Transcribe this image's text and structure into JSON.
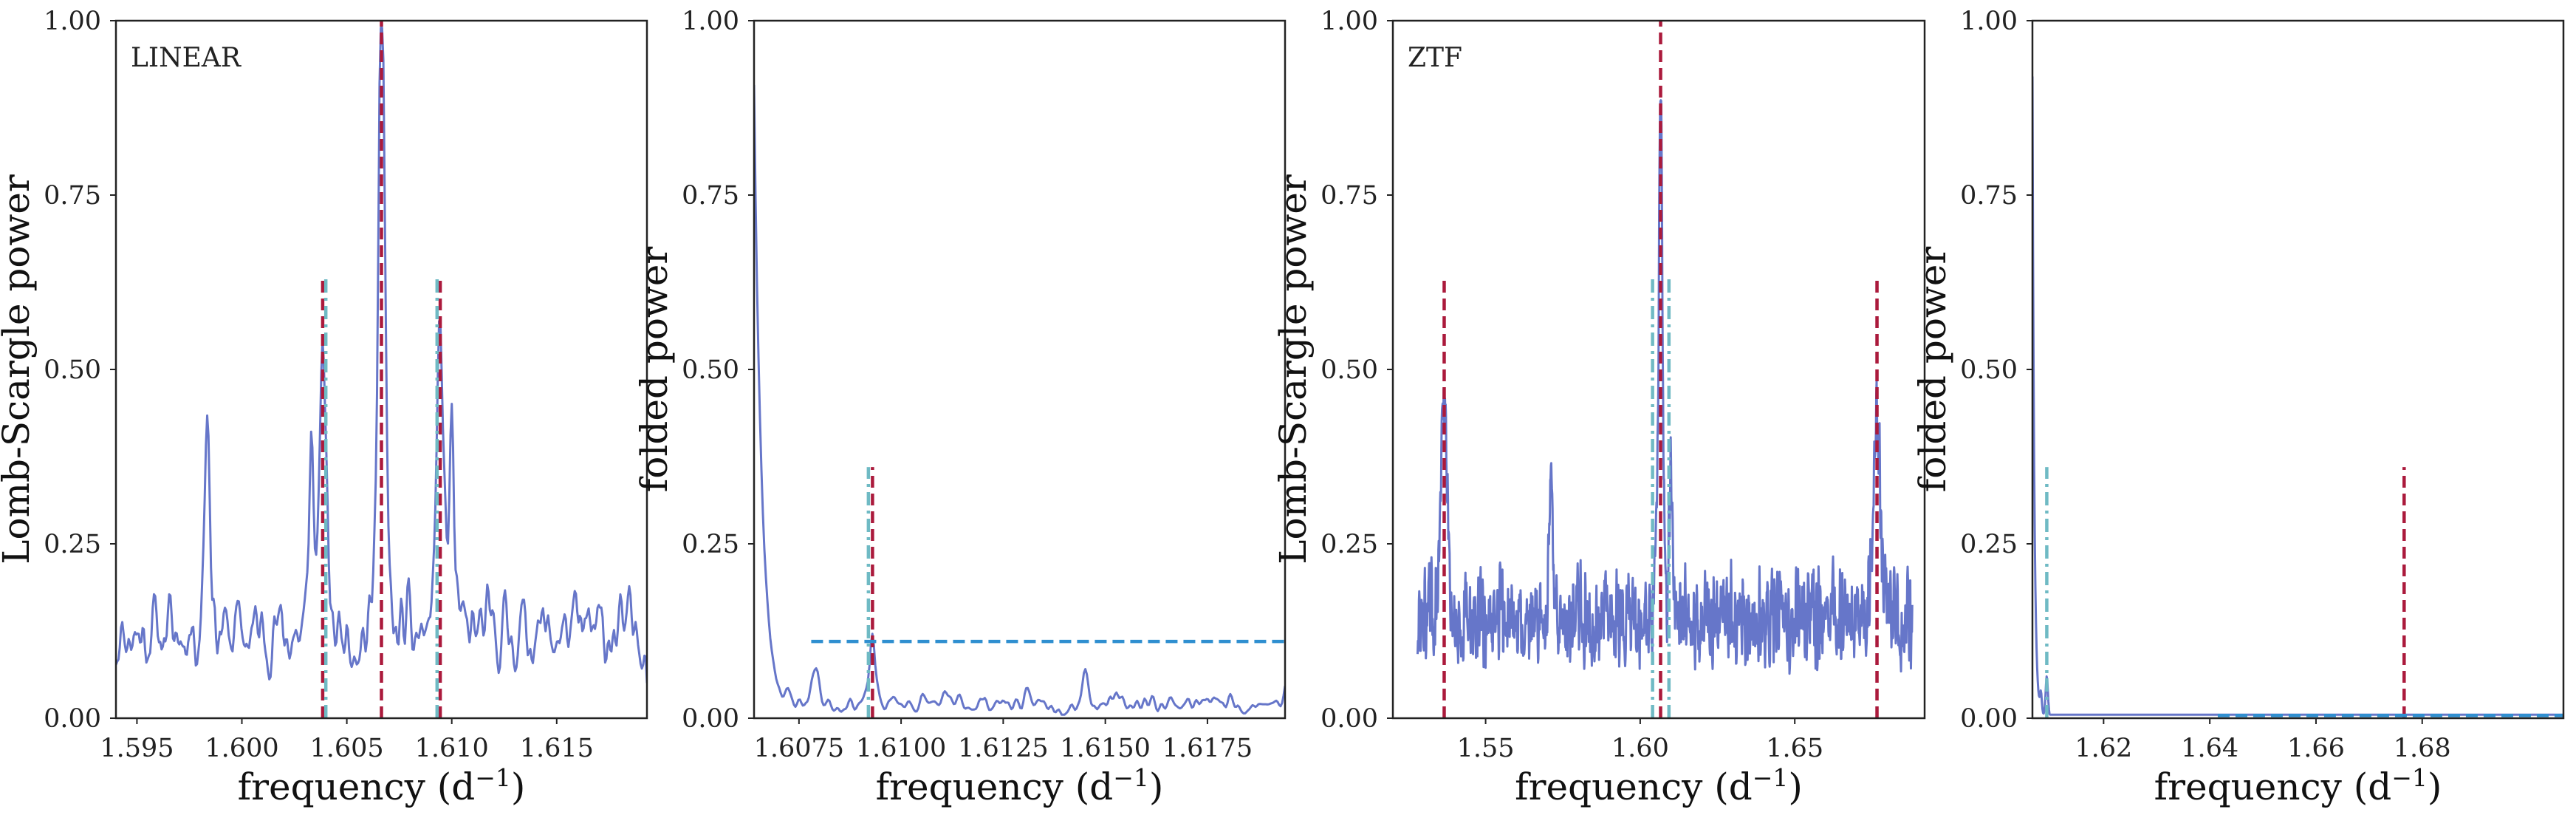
{
  "colors": {
    "series": "#6676c9",
    "red": "#ab1a3c",
    "cyan": "#6fbac4",
    "blue": "#2f8fd0"
  },
  "chart_data": [
    {
      "type": "line",
      "panel": "LINEAR periodogram",
      "annotation": "LINEAR",
      "xlabel": "frequency (d",
      "xlabel_sup": "−1",
      "xlabel_close": ")",
      "ylabel": "Lomb-Scargle power",
      "xlim": [
        1.594,
        1.6193
      ],
      "ylim": [
        0,
        1
      ],
      "xticks": [
        {
          "v": 1.595,
          "label": "1.595"
        },
        {
          "v": 1.6,
          "label": "1.600"
        },
        {
          "v": 1.605,
          "label": "1.605"
        },
        {
          "v": 1.61,
          "label": "1.610"
        },
        {
          "v": 1.615,
          "label": "1.615"
        }
      ],
      "yticks": [
        {
          "v": 0.0,
          "label": "0.00"
        },
        {
          "v": 0.25,
          "label": "0.25"
        },
        {
          "v": 0.5,
          "label": "0.50"
        },
        {
          "v": 0.75,
          "label": "0.75"
        },
        {
          "v": 1.0,
          "label": "1.00"
        }
      ],
      "series": [
        {
          "name": "Lomb-Scargle periodogram",
          "x": [],
          "y": []
        }
      ],
      "generator": {
        "seed": 11,
        "n": 420,
        "noise_base": 0.05,
        "noise_amp": 0.17,
        "smooth": 2,
        "peaks": [
          {
            "center": 1.60665,
            "height": 0.95,
            "width": 0.00018
          },
          {
            "center": 1.60385,
            "height": 0.37,
            "width": 0.0002
          },
          {
            "center": 1.60945,
            "height": 0.42,
            "width": 0.0002
          },
          {
            "center": 1.59835,
            "height": 0.33,
            "width": 0.00015
          },
          {
            "center": 1.6033,
            "height": 0.28,
            "width": 0.00012
          },
          {
            "center": 1.61,
            "height": 0.3,
            "width": 0.00012
          }
        ]
      },
      "vlines": [
        {
          "x": 1.60665,
          "y0": 0,
          "y1": 1.0,
          "style": "dash",
          "color": "red"
        },
        {
          "x": 1.60385,
          "y0": 0,
          "y1": 0.635,
          "style": "dash",
          "color": "red"
        },
        {
          "x": 1.60945,
          "y0": 0,
          "y1": 0.635,
          "style": "dash",
          "color": "red"
        },
        {
          "x": 1.604,
          "y0": 0,
          "y1": 0.635,
          "style": "dashdot",
          "color": "cyan"
        },
        {
          "x": 1.6093,
          "y0": 0,
          "y1": 0.635,
          "style": "dashdot",
          "color": "cyan"
        }
      ],
      "hlines": []
    },
    {
      "type": "line",
      "panel": "LINEAR folded",
      "annotation": "",
      "xlabel": "frequency (d",
      "xlabel_sup": "−1",
      "xlabel_close": ")",
      "ylabel": "folded power",
      "xlim": [
        1.6064,
        1.6194
      ],
      "ylim": [
        0,
        1
      ],
      "xticks": [
        {
          "v": 1.6075,
          "label": "1.6075"
        },
        {
          "v": 1.61,
          "label": "1.6100"
        },
        {
          "v": 1.6125,
          "label": "1.6125"
        },
        {
          "v": 1.615,
          "label": "1.6150"
        },
        {
          "v": 1.6175,
          "label": "1.6175"
        }
      ],
      "yticks": [
        {
          "v": 0.0,
          "label": "0.00"
        },
        {
          "v": 0.25,
          "label": "0.25"
        },
        {
          "v": 0.5,
          "label": "0.50"
        },
        {
          "v": 0.75,
          "label": "0.75"
        },
        {
          "v": 1.0,
          "label": "1.00"
        }
      ],
      "series": [
        {
          "name": "folded power",
          "x": [],
          "y": []
        }
      ],
      "generator": {
        "seed": 23,
        "n": 360,
        "noise_base": 0.0,
        "noise_amp": 0.05,
        "smooth": 3,
        "decay": {
          "start": 1.6064,
          "height": 0.9,
          "scale": 0.00018
        },
        "peaks": [
          {
            "center": 1.6093,
            "height": 0.1,
            "width": 7e-05
          },
          {
            "center": 1.6145,
            "height": 0.05,
            "width": 8e-05
          },
          {
            "center": 1.6079,
            "height": 0.05,
            "width": 0.0001
          }
        ]
      },
      "vlines": [
        {
          "x": 1.6093,
          "y0": 0,
          "y1": 0.36,
          "style": "dash",
          "color": "red"
        },
        {
          "x": 1.6092,
          "y0": 0,
          "y1": 0.36,
          "style": "dashdot",
          "color": "cyan"
        }
      ],
      "hlines": [
        {
          "y": 0.11,
          "x0": 1.6078,
          "x1": 1.6194,
          "style": "dash",
          "color": "blue"
        }
      ]
    },
    {
      "type": "line",
      "panel": "ZTF periodogram",
      "annotation": "ZTF",
      "xlabel": "frequency (d",
      "xlabel_sup": "−1",
      "xlabel_close": ")",
      "ylabel": "Lomb-Scargle power",
      "xlim": [
        1.52,
        1.692
      ],
      "ylim": [
        0,
        1
      ],
      "xticks": [
        {
          "v": 1.55,
          "label": "1.55"
        },
        {
          "v": 1.6,
          "label": "1.60"
        },
        {
          "v": 1.65,
          "label": "1.65"
        }
      ],
      "yticks": [
        {
          "v": 0.0,
          "label": "0.00"
        },
        {
          "v": 0.25,
          "label": "0.25"
        },
        {
          "v": 0.5,
          "label": "0.50"
        },
        {
          "v": 0.75,
          "label": "0.75"
        },
        {
          "v": 1.0,
          "label": "1.00"
        }
      ],
      "series": [
        {
          "name": "Lomb-Scargle periodogram",
          "x": [],
          "y": []
        }
      ],
      "generator": {
        "seed": 47,
        "n": 1500,
        "noise_base": 0.06,
        "noise_amp": 0.19,
        "smooth": 1,
        "x_start": 1.528,
        "x_end": 1.688,
        "peaks": [
          {
            "center": 1.6066,
            "height": 0.8,
            "width": 0.0007
          },
          {
            "center": 1.5365,
            "height": 0.3,
            "width": 0.0012
          },
          {
            "center": 1.6765,
            "height": 0.28,
            "width": 0.0012
          },
          {
            "center": 1.5712,
            "height": 0.22,
            "width": 0.0006
          },
          {
            "center": 1.61,
            "height": 0.24,
            "width": 0.0006
          }
        ]
      },
      "vlines": [
        {
          "x": 1.6066,
          "y0": 0,
          "y1": 1.0,
          "style": "dash",
          "color": "red"
        },
        {
          "x": 1.5366,
          "y0": 0,
          "y1": 0.635,
          "style": "dash",
          "color": "red"
        },
        {
          "x": 1.6766,
          "y0": 0,
          "y1": 0.635,
          "style": "dash",
          "color": "red"
        },
        {
          "x": 1.604,
          "y0": 0,
          "y1": 0.635,
          "style": "dashdot",
          "color": "cyan"
        },
        {
          "x": 1.6093,
          "y0": 0,
          "y1": 0.635,
          "style": "dashdot",
          "color": "cyan"
        }
      ],
      "hlines": []
    },
    {
      "type": "line",
      "panel": "ZTF folded",
      "annotation": "",
      "xlabel": "frequency (d",
      "xlabel_sup": "−1",
      "xlabel_close": ")",
      "ylabel": "folded power",
      "xlim": [
        1.6066,
        1.7066
      ],
      "ylim": [
        0,
        1
      ],
      "xticks": [
        {
          "v": 1.62,
          "label": "1.62"
        },
        {
          "v": 1.64,
          "label": "1.64"
        },
        {
          "v": 1.66,
          "label": "1.66"
        },
        {
          "v": 1.68,
          "label": "1.68"
        }
      ],
      "yticks": [
        {
          "v": 0.0,
          "label": "0.00"
        },
        {
          "v": 0.25,
          "label": "0.25"
        },
        {
          "v": 0.5,
          "label": "0.50"
        },
        {
          "v": 0.75,
          "label": "0.75"
        },
        {
          "v": 1.0,
          "label": "1.00"
        }
      ],
      "series": [
        {
          "name": "folded power",
          "x": [],
          "y": []
        }
      ],
      "generator": {
        "seed": 5,
        "n": 900,
        "noise_base": 0.0,
        "noise_amp": 0.0,
        "smooth": 0,
        "decay": {
          "start": 1.6066,
          "height": 0.92,
          "scale": 0.00035
        },
        "peaks": [
          {
            "center": 1.6093,
            "height": 0.06,
            "width": 0.00025
          },
          {
            "center": 1.6082,
            "height": 0.03,
            "width": 0.0002
          }
        ]
      },
      "vlines": [
        {
          "x": 1.6093,
          "y0": 0,
          "y1": 0.36,
          "style": "dashdot",
          "color": "cyan"
        },
        {
          "x": 1.6766,
          "y0": 0,
          "y1": 0.36,
          "style": "dash",
          "color": "red"
        }
      ],
      "hlines": [
        {
          "y": 0.004,
          "x0": 1.6415,
          "x1": 1.7066,
          "style": "dash",
          "color": "blue"
        }
      ]
    }
  ]
}
